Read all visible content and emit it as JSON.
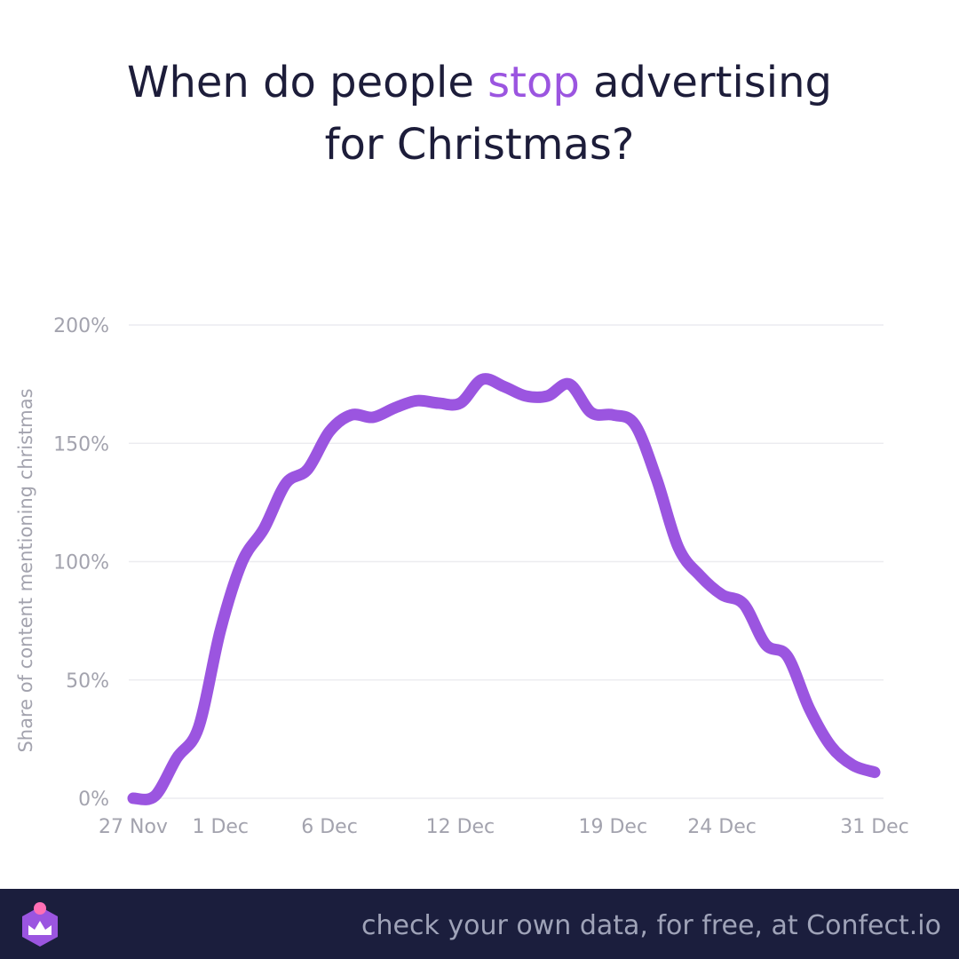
{
  "title": {
    "part1": "When do people ",
    "accent": "stop",
    "part2": " advertising",
    "line2": "for Christmas?"
  },
  "colors": {
    "accent": "#9b55e0",
    "title": "#1d1d3a",
    "axis_text": "#a3a3ae",
    "grid": "#ececf0",
    "footer_bg": "#1b1e3d",
    "footer_text": "#9fa3b8"
  },
  "footer": {
    "text": "check your own data, for free, at Confect.io",
    "logo_icon": "confect-logo-icon"
  },
  "chart_data": {
    "type": "line",
    "title": "When do people stop advertising for Christmas?",
    "ylabel": "Share of content mentioning christmas",
    "xlabel": "",
    "ylim": [
      0,
      200
    ],
    "yticks": [
      0,
      50,
      100,
      150,
      200
    ],
    "ytick_labels": [
      "0%",
      "50%",
      "100%",
      "150%",
      "200%"
    ],
    "xticks": [
      {
        "date": "2022-11-27",
        "label": "27 Nov"
      },
      {
        "date": "2022-12-01",
        "label": "1 Dec"
      },
      {
        "date": "2022-12-06",
        "label": "6 Dec"
      },
      {
        "date": "2022-12-12",
        "label": "12 Dec"
      },
      {
        "date": "2022-12-19",
        "label": "19 Dec"
      },
      {
        "date": "2022-12-24",
        "label": "24 Dec"
      },
      {
        "date": "2022-12-31",
        "label": "31 Dec"
      }
    ],
    "grid": true,
    "series": [
      {
        "x": [
          "2022-11-27",
          "2022-11-28",
          "2022-11-29",
          "2022-11-30",
          "2022-12-01",
          "2022-12-02",
          "2022-12-03",
          "2022-12-04",
          "2022-12-05",
          "2022-12-06",
          "2022-12-07",
          "2022-12-08",
          "2022-12-09",
          "2022-12-10",
          "2022-12-11",
          "2022-12-12",
          "2022-12-13",
          "2022-12-14",
          "2022-12-15",
          "2022-12-16",
          "2022-12-17",
          "2022-12-18",
          "2022-12-19",
          "2022-12-20",
          "2022-12-21",
          "2022-12-22",
          "2022-12-23",
          "2022-12-24",
          "2022-12-25",
          "2022-12-26",
          "2022-12-27",
          "2022-12-28",
          "2022-12-29",
          "2022-12-30",
          "2022-12-31"
        ],
        "y": [
          0,
          1,
          17,
          30,
          71,
          100,
          114,
          133,
          139,
          155,
          162,
          161,
          165,
          168,
          167,
          167,
          177,
          174,
          170,
          170,
          175,
          163,
          162,
          158,
          135,
          106,
          94,
          86,
          82,
          65,
          60,
          38,
          22,
          14,
          11
        ]
      }
    ]
  }
}
